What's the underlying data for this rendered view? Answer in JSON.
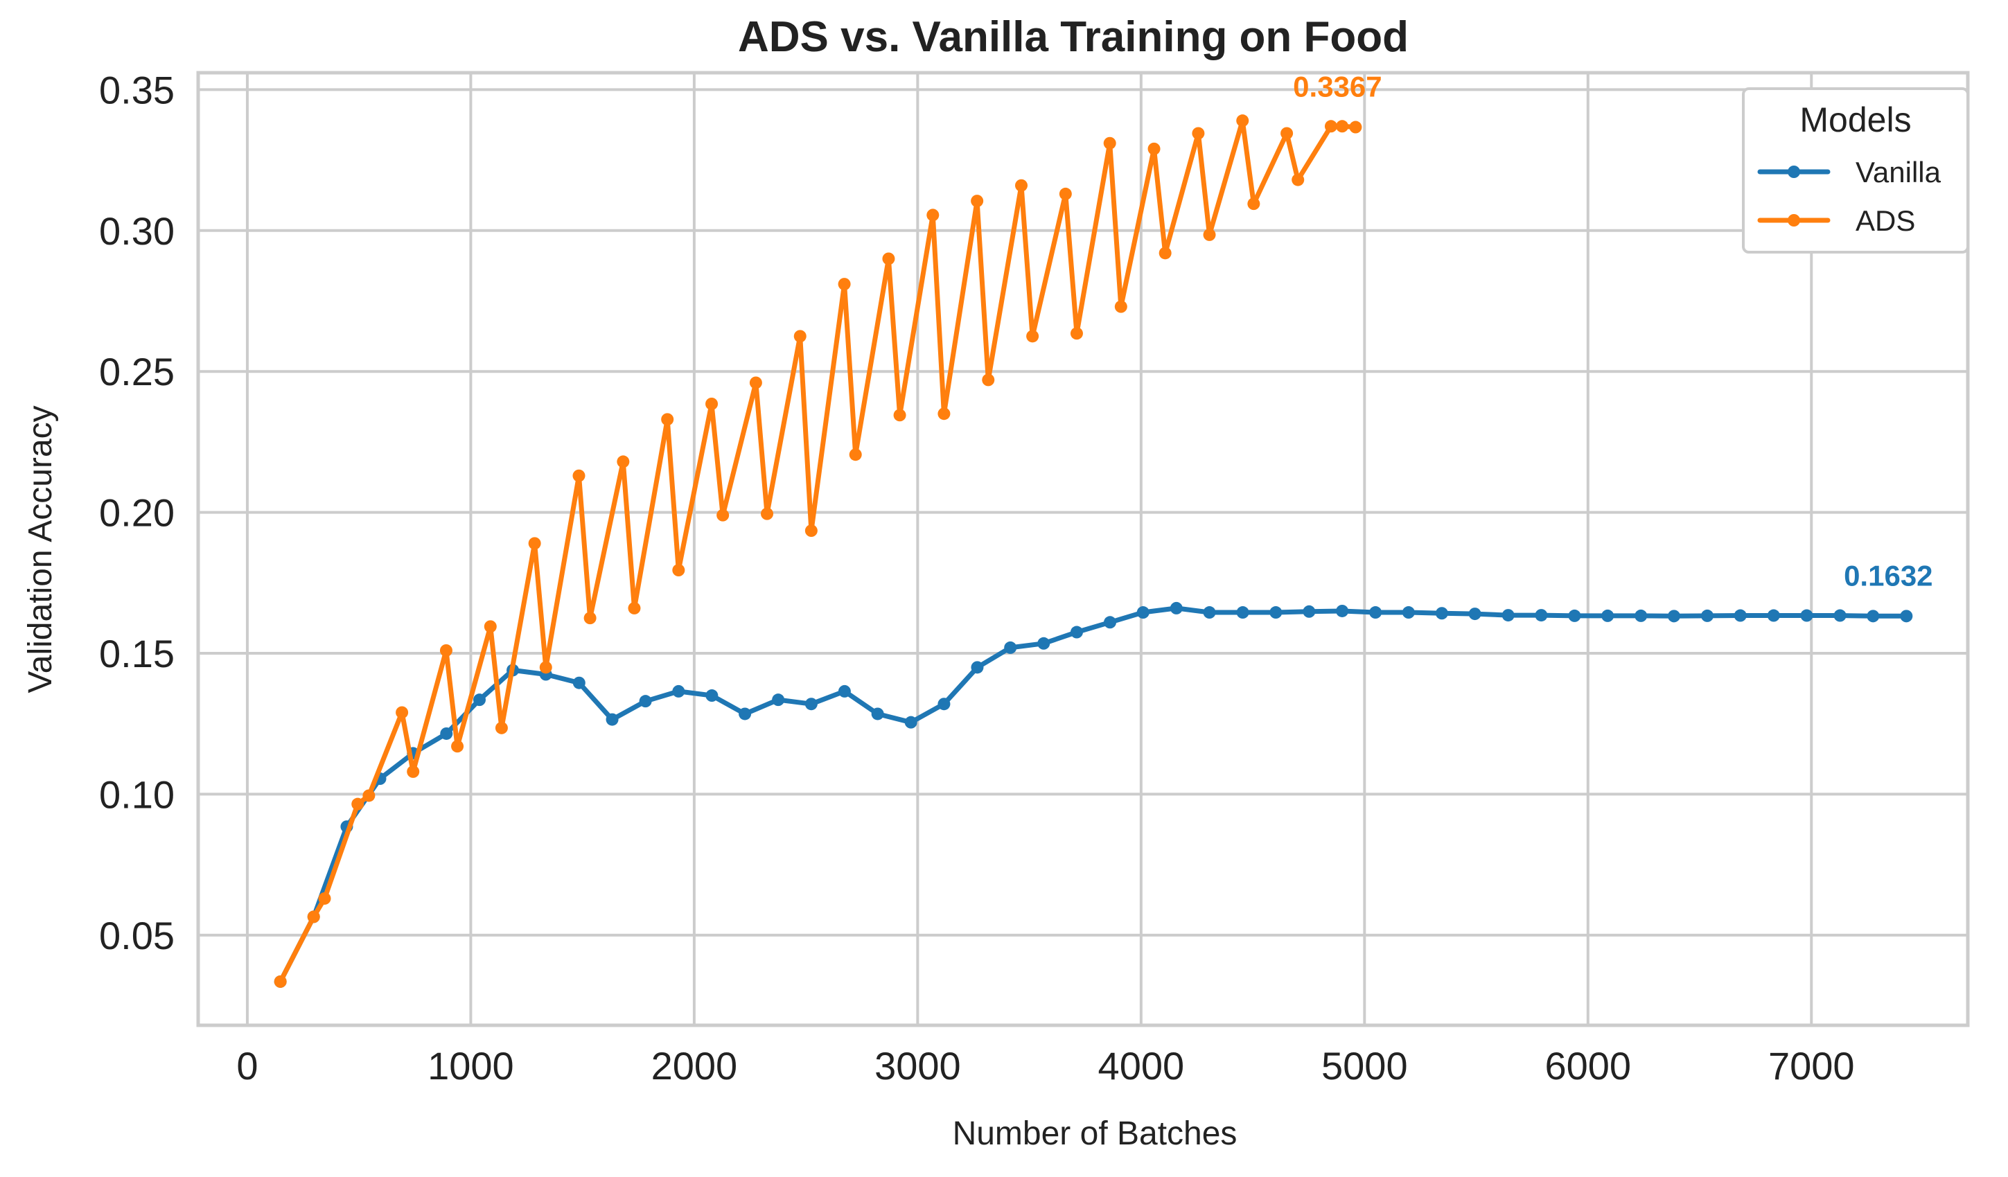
{
  "chart_data": {
    "type": "line",
    "title": "ADS vs. Vanilla Training on Food",
    "xlabel": "Number of Batches",
    "ylabel": "Validation Accuracy",
    "xlim": [
      -220,
      7700
    ],
    "ylim": [
      0.018,
      0.356
    ],
    "xticks": [
      0,
      1000,
      2000,
      3000,
      4000,
      5000,
      6000,
      7000
    ],
    "xtick_labels": [
      "0",
      "1000",
      "2000",
      "3000",
      "4000",
      "5000",
      "6000",
      "7000"
    ],
    "yticks": [
      0.05,
      0.1,
      0.15,
      0.2,
      0.25,
      0.3,
      0.35
    ],
    "ytick_labels": [
      "0.05",
      "0.10",
      "0.15",
      "0.20",
      "0.25",
      "0.30",
      "0.35"
    ],
    "grid": true,
    "legend": {
      "title": "Models",
      "position": "top-right"
    },
    "series": [
      {
        "name": "Vanilla",
        "color": "#1f77b4",
        "end_label": "0.1632",
        "x": [
          148,
          297,
          445,
          594,
          742,
          891,
          1039,
          1188,
          1336,
          1485,
          1633,
          1782,
          1930,
          2079,
          2227,
          2376,
          2524,
          2673,
          2821,
          2970,
          3118,
          3267,
          3415,
          3564,
          3712,
          3861,
          4009,
          4158,
          4306,
          4455,
          4603,
          4752,
          4900,
          5049,
          5197,
          5346,
          5494,
          5643,
          5791,
          5940,
          6088,
          6237,
          6385,
          6534,
          6682,
          6831,
          6979,
          7128,
          7276,
          7425
        ],
        "y": [
          0.0335,
          0.0565,
          0.0885,
          0.1055,
          0.1145,
          0.1215,
          0.1335,
          0.144,
          0.1425,
          0.1395,
          0.1265,
          0.133,
          0.1365,
          0.135,
          0.1285,
          0.1335,
          0.132,
          0.1365,
          0.1285,
          0.1255,
          0.132,
          0.145,
          0.152,
          0.1535,
          0.1575,
          0.161,
          0.1645,
          0.166,
          0.1645,
          0.1645,
          0.1645,
          0.1648,
          0.165,
          0.1645,
          0.1645,
          0.1642,
          0.164,
          0.1635,
          0.1635,
          0.1633,
          0.1633,
          0.1633,
          0.1632,
          0.1633,
          0.1634,
          0.1634,
          0.1634,
          0.1634,
          0.1632,
          0.1632
        ]
      },
      {
        "name": "ADS",
        "color": "#ff7f0e",
        "end_label": "0.3367",
        "x": [
          148,
          297,
          346,
          494,
          544,
          692,
          742,
          890,
          940,
          1088,
          1138,
          1286,
          1336,
          1484,
          1534,
          1682,
          1732,
          1880,
          1930,
          2078,
          2128,
          2276,
          2326,
          2474,
          2524,
          2672,
          2722,
          2870,
          2920,
          3068,
          3118,
          3266,
          3316,
          3464,
          3514,
          3662,
          3712,
          3860,
          3910,
          4058,
          4108,
          4256,
          4306,
          4454,
          4504,
          4652,
          4702,
          4850,
          4900,
          4960
        ],
        "y": [
          0.0335,
          0.0565,
          0.063,
          0.0965,
          0.0995,
          0.129,
          0.108,
          0.151,
          0.117,
          0.1595,
          0.1235,
          0.189,
          0.145,
          0.213,
          0.1625,
          0.218,
          0.166,
          0.233,
          0.1795,
          0.2385,
          0.199,
          0.246,
          0.1995,
          0.2625,
          0.1935,
          0.281,
          0.2205,
          0.29,
          0.2345,
          0.3055,
          0.235,
          0.3105,
          0.247,
          0.316,
          0.2625,
          0.313,
          0.2635,
          0.331,
          0.273,
          0.329,
          0.292,
          0.3345,
          0.2985,
          0.339,
          0.3095,
          0.3345,
          0.318,
          0.337,
          0.337,
          0.3367
        ]
      }
    ]
  }
}
